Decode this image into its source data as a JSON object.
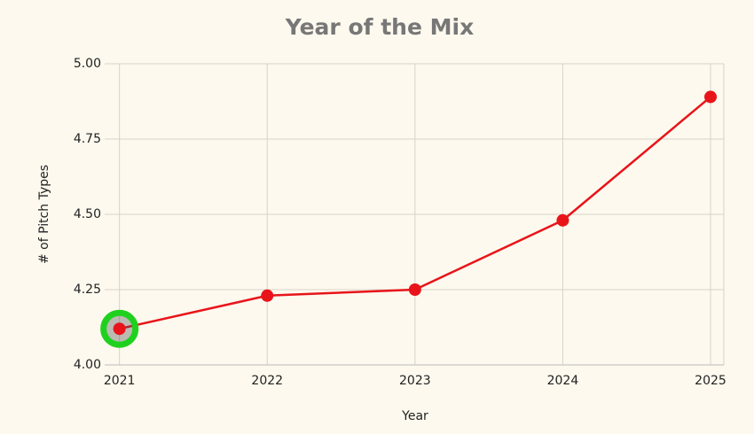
{
  "chart_data": {
    "type": "line",
    "title": "Year of the Mix",
    "x_label": "Year",
    "y_label": "# of Pitch Types",
    "x": [
      2021,
      2022,
      2023,
      2024,
      2025
    ],
    "series": [
      {
        "name": "Pitch Types",
        "color": "#e8141a",
        "values": [
          4.12,
          4.23,
          4.25,
          4.48,
          4.89
        ]
      }
    ],
    "xlim": [
      2020.9,
      2025.09
    ],
    "xticks": [
      2021,
      2022,
      2023,
      2024,
      2025
    ],
    "ylim": [
      4,
      5
    ],
    "yticks": [
      {
        "value": 4,
        "label": "4.00"
      },
      4.25,
      {
        "value": 4.5,
        "label": "4.50"
      },
      4.75,
      {
        "value": 5,
        "label": "5.00"
      }
    ],
    "grid": true
  }
}
